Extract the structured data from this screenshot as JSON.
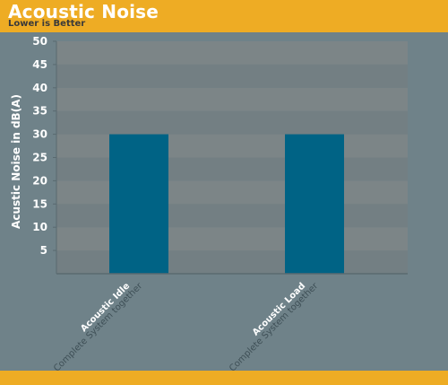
{
  "header": {
    "title": "Acoustic Noise",
    "subtitle": "Lower is Better"
  },
  "colors": {
    "header_bg": "#eeac24",
    "plot_bg": "#6f8289",
    "band_light": "#7c8587",
    "band_dark": "#737f83",
    "bar": "#006385",
    "axis": "#5a6a70"
  },
  "chart_data": {
    "type": "bar",
    "title": "Acoustic Noise",
    "subtitle": "Lower is Better",
    "xlabel": "",
    "ylabel": "Acustic Noise in dB(A)",
    "ylim": [
      0,
      50
    ],
    "yticks": [
      5,
      10,
      15,
      20,
      25,
      30,
      35,
      40,
      45,
      50
    ],
    "grid": true,
    "categories": [
      {
        "label": "Acoustic Idle",
        "sublabel": "Complete System together"
      },
      {
        "label": "Acoustic Load",
        "sublabel": "Complete System together"
      }
    ],
    "values": [
      30,
      30
    ]
  }
}
